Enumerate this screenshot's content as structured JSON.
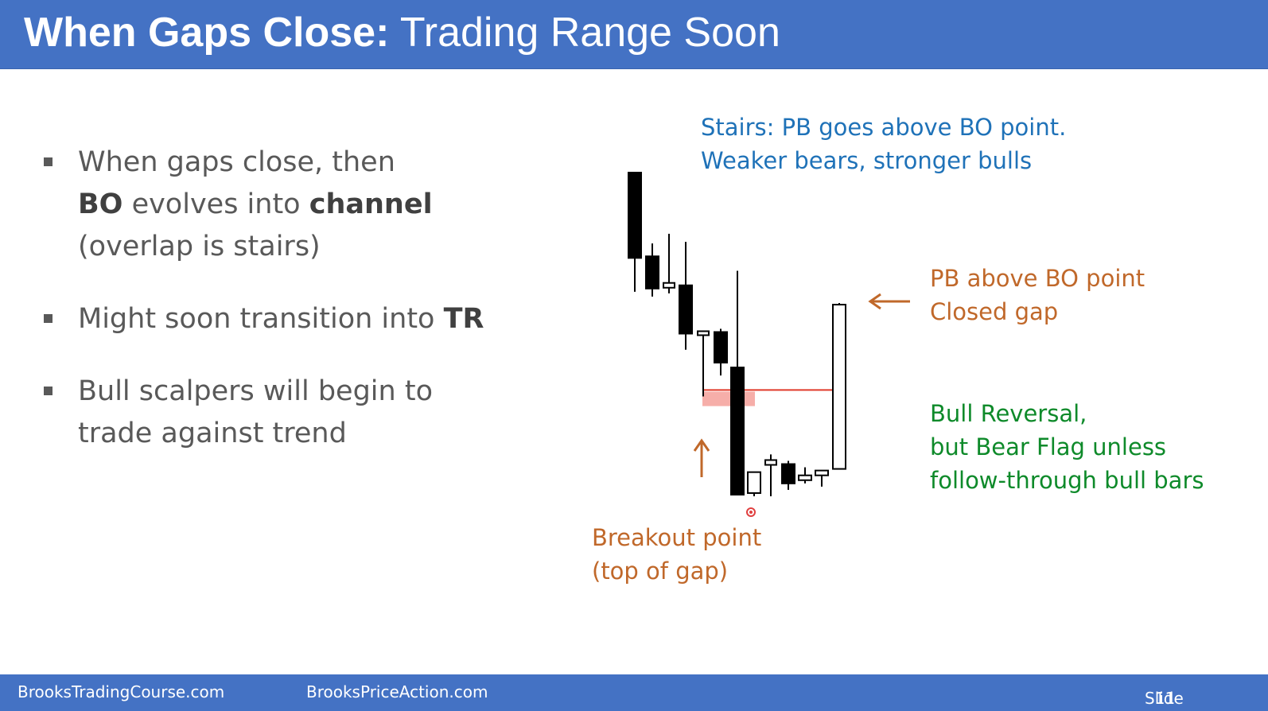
{
  "slide": {
    "title_bold": "When Gaps Close:",
    "title_rest": " Trading Range Soon",
    "bullets": [
      {
        "parts": [
          {
            "t": "When gaps close, then",
            "b": false,
            "br": true
          },
          {
            "t": "BO",
            "b": true
          },
          {
            "t": " evolves into ",
            "b": false
          },
          {
            "t": "channel",
            "b": true,
            "br": true
          },
          {
            "t": "(overlap is stairs)",
            "b": false
          }
        ]
      },
      {
        "parts": [
          {
            "t": "Might soon transition into ",
            "b": false
          },
          {
            "t": "TR",
            "b": true
          }
        ]
      },
      {
        "parts": [
          {
            "t": "Bull scalpers will begin to",
            "b": false,
            "br": true
          },
          {
            "t": "trade against trend",
            "b": false
          }
        ]
      }
    ],
    "annotations": {
      "stairs_line1": "Stairs: PB goes above BO point.",
      "stairs_line2": "Weaker bears, stronger bulls",
      "pb_line1": "PB above BO point",
      "pb_line2": "Closed gap",
      "reversal_line1": "Bull Reversal,",
      "reversal_line2": "but Bear Flag unless",
      "reversal_line3": "follow-through bull bars",
      "breakout_line1": "Breakout point",
      "breakout_line2": "(top of gap)"
    },
    "footer": {
      "site1": "BrooksTradingCourse.com",
      "site2": "BrooksPriceAction.com",
      "slide_label": "Slide",
      "slide_number": "11"
    },
    "colors": {
      "header": "#4472c4",
      "annotation_blue": "#1f72b8",
      "annotation_orange": "#c0682a",
      "annotation_green": "#0e8a2a",
      "bo_line": "#e03a2a",
      "gap_zone": "#f4a09a",
      "bear_bar": "#000000",
      "bull_bar": "#ffffff"
    }
  },
  "chart_data": {
    "type": "candlestick",
    "price_range": [
      0,
      100
    ],
    "bars": [
      {
        "open": 100.0,
        "high": 100.0,
        "low": 63.0,
        "close": 73.5,
        "dir": "bear"
      },
      {
        "open": 74.0,
        "high": 78.0,
        "low": 61.5,
        "close": 64.0,
        "dir": "bear"
      },
      {
        "open": 65.5,
        "high": 81.0,
        "low": 62.5,
        "close": 64.5,
        "dir": "doji"
      },
      {
        "open": 65.0,
        "high": 78.5,
        "low": 45.0,
        "close": 50.0,
        "dir": "bear"
      },
      {
        "open": 50.5,
        "high": 50.5,
        "low": 30.5,
        "close": 50.5,
        "dir": "doji"
      },
      {
        "open": 50.5,
        "high": 51.5,
        "low": 37.0,
        "close": 41.0,
        "dir": "bear"
      },
      {
        "open": 39.5,
        "high": 69.5,
        "low": 0.0,
        "close": 0.0,
        "dir": "bear"
      },
      {
        "open": 0.5,
        "high": 7.0,
        "low": -0.5,
        "close": 7.0,
        "dir": "bull"
      },
      {
        "open": 9.5,
        "high": 12.5,
        "low": -0.5,
        "close": 10.5,
        "dir": "doji"
      },
      {
        "open": 9.5,
        "high": 10.5,
        "low": 1.5,
        "close": 3.5,
        "dir": "bear"
      },
      {
        "open": 4.5,
        "high": 8.5,
        "low": 3.5,
        "close": 6.0,
        "dir": "bull"
      },
      {
        "open": 6.0,
        "high": 7.5,
        "low": 2.5,
        "close": 7.5,
        "dir": "bull"
      },
      {
        "open": 8.0,
        "high": 59.5,
        "low": 8.0,
        "close": 59.0,
        "dir": "bull"
      }
    ],
    "bo_line_level": 32.5,
    "gap_zone": [
      27.5,
      32.0
    ]
  }
}
